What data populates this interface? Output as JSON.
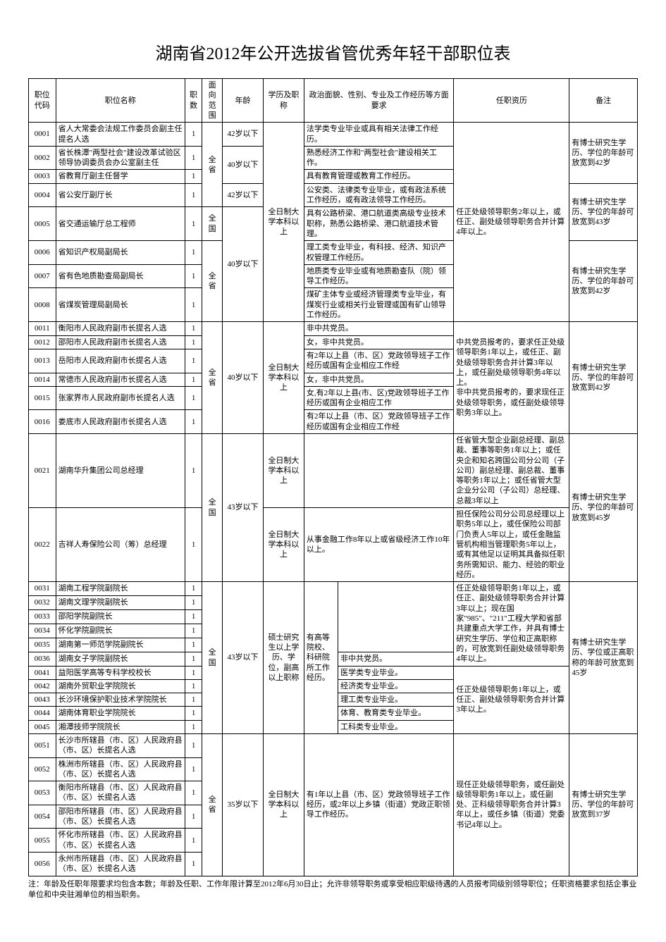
{
  "title": "湖南省2012年公开选拔省管优秀年轻干部职位表",
  "headers": {
    "code": "职位代码",
    "name": "职位名称",
    "count": "职数",
    "scope": "面向范围",
    "age": "年龄",
    "edu": "学历及职称",
    "req": "政治面貌、性别、专业及工作经历等方面要求",
    "qual": "任职资历",
    "note": "备注"
  },
  "rows": {
    "r0001": {
      "code": "0001",
      "name": "省人大常委会法规工作委员会副主任提名人选",
      "count": "1",
      "age": "42岁以下",
      "req2": "法学类专业毕业或具有相关法律工作经历。"
    },
    "r0002": {
      "code": "0002",
      "name": "省长株潭\"两型社会\"建设改革试验区领导协调委员会办公室副主任",
      "count": "1",
      "age": "40岁以下",
      "req2": "熟悉经济工作和\"两型社会\"建设相关工作。"
    },
    "r0003": {
      "code": "0003",
      "name": "省教育厅副主任督学",
      "count": "1",
      "req2": "具有教育管理或教育工作经历。"
    },
    "r0004": {
      "code": "0004",
      "name": "省公安厅副厅长",
      "count": "1",
      "age": "42岁以下",
      "req2": "公安类、法律类专业毕业，或有政法系统工作经历，或有政法领导工作经历。"
    },
    "r0005": {
      "code": "0005",
      "name": "省交通运输厅总工程师",
      "count": "1",
      "scope": "全国",
      "req2": "具有公路桥梁、港口航道类高级专业技术职称，熟悉公路桥梁、港口航道技术管理。"
    },
    "r0006": {
      "code": "0006",
      "name": "省知识产权局副局长",
      "count": "1",
      "req2": "理工类专业毕业，有科技、经济、知识产权管理工作经历。"
    },
    "r0007": {
      "code": "0007",
      "name": "省有色地质勘查局副局长",
      "count": "1",
      "req2": "地质类专业毕业或有地质勘查队（院）领导工作经历。"
    },
    "r0008": {
      "code": "0008",
      "name": "省煤炭管理局副局长",
      "count": "1",
      "req2": "煤矿主体专业或经济管理类专业毕业，有煤炭行业或相关行业管理或国有矿山领导工作经历。"
    },
    "r0011": {
      "code": "0011",
      "name": "衡阳市人民政府副市长提名人选",
      "count": "1",
      "req2": "非中共党员。"
    },
    "r0012": {
      "code": "0012",
      "name": "邵阳市人民政府副市长提名人选",
      "count": "1",
      "req2": "女，非中共党员。"
    },
    "r0013": {
      "code": "0013",
      "name": "岳阳市人民政府副市长提名人选",
      "count": "1",
      "req2": "有2年以上县（市、区）党政领导班子工作经历或国有企业相应工作经"
    },
    "r0014": {
      "code": "0014",
      "name": "常德市人民政府副市长提名人选",
      "count": "1",
      "req2": "女，非中共党员。"
    },
    "r0015": {
      "code": "0015",
      "name": "张家界市人民政府副市长提名人选",
      "count": "1",
      "req2": "女,有2年以上县(市、区)党政领导班子工作经历或国有企业相应工作"
    },
    "r0016": {
      "code": "0016",
      "name": "娄底市人民政府副市长提名人选",
      "count": "1",
      "req2": "有2年以上县（市、区）党政领导班子工作经历或国有企业相应工作经"
    },
    "r0021": {
      "code": "0021",
      "name": "湖南华升集团公司总经理",
      "count": "1",
      "edu": "全日制大学本科以上",
      "req2": ""
    },
    "r0022": {
      "code": "0022",
      "name": "吉祥人寿保险公司（筹）总经理",
      "count": "1",
      "edu": "全日制大学本科以上",
      "req2": "从事金融工作8年以上或省级经济工作10年以上。"
    },
    "r0031": {
      "code": "0031",
      "name": "湖南工程学院副院长",
      "count": "1",
      "req2": ""
    },
    "r0032": {
      "code": "0032",
      "name": "湖南文理学院副院长",
      "count": "1",
      "req2": ""
    },
    "r0033": {
      "code": "0033",
      "name": "邵阳学院副院长",
      "count": "1",
      "req2": ""
    },
    "r0034": {
      "code": "0034",
      "name": "怀化学院副院长",
      "count": "1",
      "req2": ""
    },
    "r0035": {
      "code": "0035",
      "name": "湖南第一师范学院副院长",
      "count": "1",
      "req2": ""
    },
    "r0036": {
      "code": "0036",
      "name": "湖南女子学院副院长",
      "count": "1",
      "req2": "非中共党员。"
    },
    "r0041": {
      "code": "0041",
      "name": "益阳医学高等专科学校校长",
      "count": "1",
      "req2": "医学类专业毕业。"
    },
    "r0042": {
      "code": "0042",
      "name": "湖南外贸职业学院院长",
      "count": "1",
      "req2": "经济类专业毕业。"
    },
    "r0043": {
      "code": "0043",
      "name": "长沙环境保护职业技术学院院长",
      "count": "1",
      "req2": "理工类专业毕业。"
    },
    "r0044": {
      "code": "0044",
      "name": "湖南体育职业学院院长",
      "count": "1",
      "req2": "体育、教育类专业毕业。"
    },
    "r0045": {
      "code": "0045",
      "name": "湘潭技师学院院长",
      "count": "1",
      "req2": "工科类专业毕业。"
    },
    "r0051": {
      "code": "0051",
      "name": "长沙市所辖县（市、区）人民政府县（市、区）长提名人选",
      "count": "1"
    },
    "r0052": {
      "code": "0052",
      "name": "株洲市所辖县（市、区）人民政府县（市、区）长提名人选",
      "count": "1"
    },
    "r0053": {
      "code": "0053",
      "name": "衡阳市所辖县（市、区）人民政府县（市、区）长提名人选",
      "count": "1"
    },
    "r0054": {
      "code": "0054",
      "name": "邵阳市所辖县（市、区）人民政府县（市、区）长提名人选",
      "count": "1"
    },
    "r0055": {
      "code": "0055",
      "name": "怀化市所辖县（市、区）人民政府县（市、区）长提名人选",
      "count": "1"
    },
    "r0056": {
      "code": "0056",
      "name": "永州市所辖县（市、区）人民政府县（市、区）长提名人选",
      "count": "1"
    }
  },
  "shared": {
    "scope_province": "全省",
    "scope_nation": "全国",
    "age_40": "40岁以下",
    "age_43": "43岁以下",
    "age_35": "35岁以下",
    "edu_bachelor": "全日制大学本科以上",
    "edu_master": "硕士研究生以上学历、学位，副高以上职称",
    "req1_higher_edu": "有高等院校、科研院所工作经历。",
    "qual_group1": "任正处级领导职务2年以上，或任正、副处级领导职务合并计算4年以上。",
    "qual_group2": "中共党员报考的，要求任正处级领导职务1年以上，或任正、副处级领导职务合并计算3年以上，或任副处级领导职务4年以上。\n非中共党员报考的，要求现任正处级领导职务，或任副处级领导职务3年以上。",
    "qual_0021": "任省管大型企业副总经理、副总裁、董事等职务1年以上；或任央企和知名跨国公司分公司（子公司）副总经理、副总裁、董事等职务1年以上；或任省管大型企业分公司（子公司）总经理、总裁3年以上",
    "qual_0022": "担任保险公司分公司总经理以上职务5年以上，或任保险公司部门负责人5年以上，或任金融监管机构相当管理职务5年以上，或有其他足以证明其具备拟任职务所需知识、能力、经验的职业经历。",
    "qual_group3a": "任正处级领导职务1年以上，或任正、副处级领导职务合并计算3年以上；现在国家\"985\"、\"211\"工程大学和省部共建重点大学工作，并具有博士研究生学历、学位和正高职称的，可放宽到任副处级领导职务4年以上。",
    "qual_group3b": "任正处级领导职务1年以上，或任正、副处级领导职务合并计算3年以上。",
    "qual_group4": "现任正处级领导职务，或任副处级领导职务1年以上，或任副处、正科级领导职务合并计算3年以上，或任乡镇（街道）党委书记4年以上。",
    "req_group4": "有1年以上县（市、区）党政领导班子工作经历，或2年以上乡镇（街道）党政正职领导工作经历。",
    "note_phd42": "有博士研究生学历、学位的年龄可放宽到42岁",
    "note_phd43": "有博士研究生学历、学位的年龄可放宽到43岁",
    "note_phd45": "有博士研究生学历、学位的年龄可放宽到45岁",
    "note_phd45b": "有博士研究生学历、学位或正高职称的年龄可放宽到45岁",
    "note_phd37": "有博士研究生学历、学位的年龄可放宽到37岁"
  },
  "footnote": "注：年龄及任职年限要求均包含本数；年龄及任职、工作年限计算至2012年6月30日止；允许非领导职务或享受相应职级待遇的人员报考同级别领导职位；任职资格要求包括企事业单位和中央驻湘单位的相当职务。"
}
